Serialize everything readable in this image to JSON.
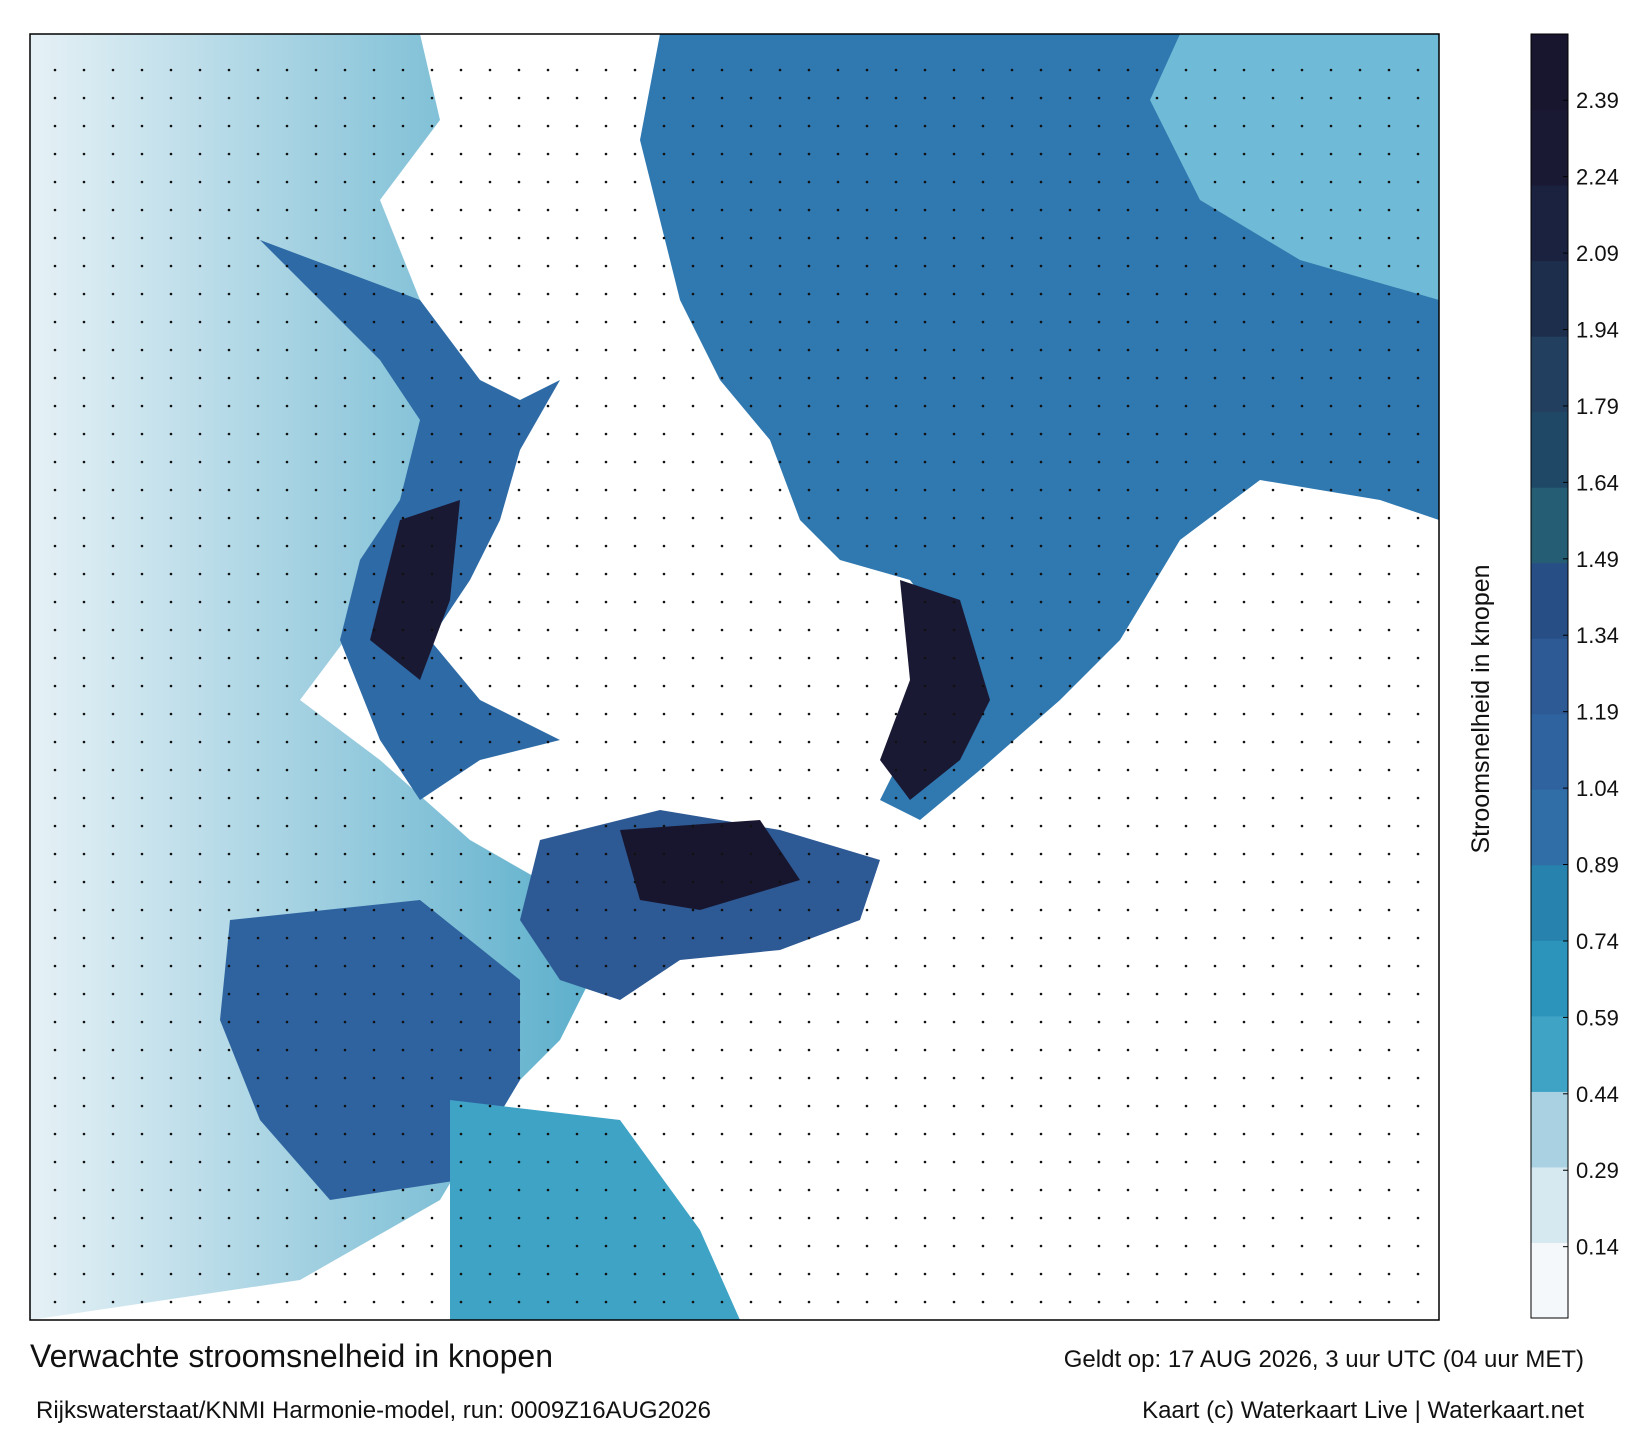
{
  "title": "Verwachte stroomsnelheid in knopen",
  "subtitle": "Rijkswaterstaat/KNMI Harmonie-model, run: 0009Z16AUG2026",
  "valid_time": "Geldt op: 17 AUG 2026, 3 uur UTC (04 uur MET)",
  "credit": "Kaart (c) Waterkaart Live | Waterkaart.net",
  "colorbar": {
    "label": "Stroomsnelheid in knopen",
    "lim": [
      0,
      2.52
    ],
    "ticks": [
      0.14,
      0.29,
      0.44,
      0.59,
      0.74,
      0.89,
      1.04,
      1.19,
      1.34,
      1.49,
      1.64,
      1.79,
      1.94,
      2.09,
      2.24,
      2.39
    ],
    "colors": [
      "#f4f8fb",
      "#d6e8f0",
      "#a9d1e1",
      "#3fa3c6",
      "#2c93bb",
      "#2783ad",
      "#2f6ea6",
      "#2e63a0",
      "#2d5994",
      "#284e86",
      "#255e74",
      "#1f4866",
      "#233f5f",
      "#1c2e4b",
      "#1b2240",
      "#1a1934",
      "#18162f"
    ]
  }
}
